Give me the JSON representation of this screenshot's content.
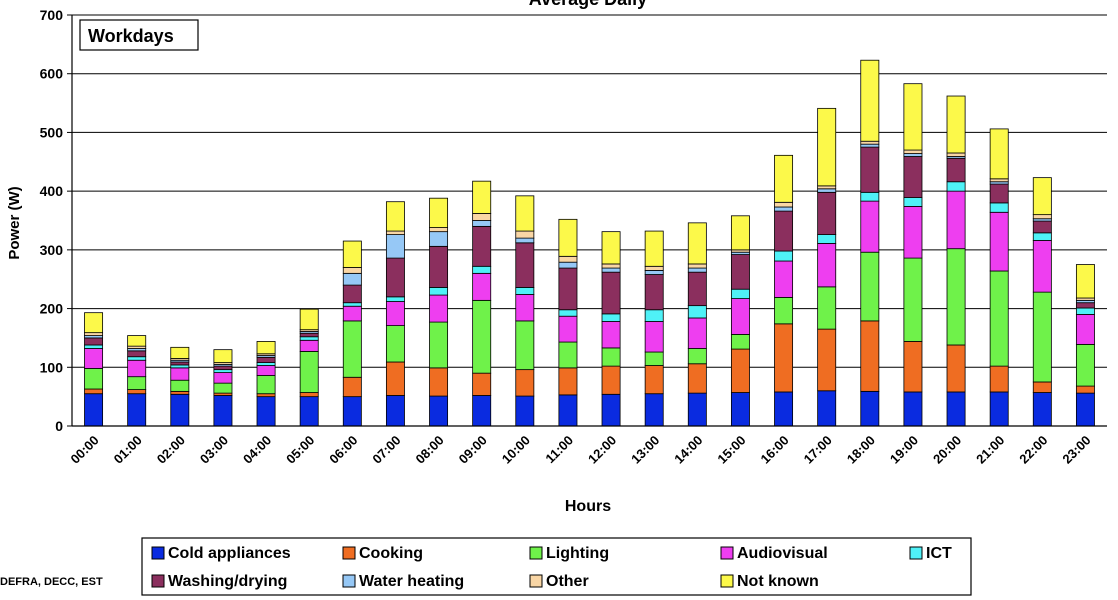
{
  "chart_data": {
    "type": "bar",
    "stacked": true,
    "title": "Average Daily",
    "inset_label": "Workdays",
    "xlabel": "Hours",
    "ylabel": "Power (W)",
    "ylim": [
      0,
      700
    ],
    "yticks": [
      0,
      100,
      200,
      300,
      400,
      500,
      600,
      700
    ],
    "grid": true,
    "legend_position": "bottom",
    "categories": [
      "00:00",
      "01:00",
      "02:00",
      "03:00",
      "04:00",
      "05:00",
      "06:00",
      "07:00",
      "08:00",
      "09:00",
      "10:00",
      "11:00",
      "12:00",
      "13:00",
      "14:00",
      "15:00",
      "16:00",
      "17:00",
      "18:00",
      "19:00",
      "20:00",
      "21:00",
      "22:00",
      "23:00"
    ],
    "series": [
      {
        "name": "Cold appliances",
        "color": "#0a2be0",
        "values": [
          55,
          55,
          54,
          52,
          50,
          50,
          50,
          52,
          51,
          52,
          51,
          53,
          54,
          55,
          56,
          57,
          58,
          60,
          59,
          58,
          58,
          58,
          57,
          56
        ]
      },
      {
        "name": "Cooking",
        "color": "#ef6d22",
        "values": [
          8,
          7,
          5,
          4,
          5,
          7,
          33,
          57,
          48,
          38,
          45,
          46,
          48,
          48,
          50,
          74,
          116,
          105,
          120,
          86,
          80,
          44,
          18,
          12
        ]
      },
      {
        "name": "Lighting",
        "color": "#6ff24a",
        "values": [
          35,
          22,
          19,
          17,
          31,
          70,
          96,
          62,
          78,
          124,
          83,
          44,
          31,
          23,
          26,
          25,
          45,
          72,
          117,
          142,
          164,
          162,
          153,
          71
        ]
      },
      {
        "name": "Audiovisual",
        "color": "#ee3ef0",
        "values": [
          34,
          28,
          21,
          18,
          17,
          19,
          25,
          41,
          46,
          46,
          45,
          44,
          45,
          52,
          52,
          61,
          62,
          74,
          87,
          88,
          98,
          100,
          88,
          51
        ]
      },
      {
        "name": "ICT",
        "color": "#4ff1f7",
        "values": [
          6,
          6,
          5,
          5,
          5,
          6,
          6,
          8,
          13,
          12,
          12,
          11,
          13,
          20,
          21,
          16,
          17,
          15,
          15,
          15,
          16,
          16,
          13,
          11
        ]
      },
      {
        "name": "Washing/drying",
        "color": "#8b2f5e",
        "values": [
          12,
          10,
          5,
          6,
          9,
          6,
          30,
          66,
          70,
          68,
          76,
          71,
          71,
          60,
          57,
          59,
          68,
          72,
          77,
          70,
          40,
          32,
          20,
          9
        ]
      },
      {
        "name": "Water heating",
        "color": "#96c8f6",
        "values": [
          4,
          4,
          3,
          3,
          3,
          3,
          20,
          40,
          25,
          10,
          8,
          10,
          7,
          7,
          7,
          4,
          7,
          6,
          5,
          5,
          3,
          4,
          4,
          4
        ]
      },
      {
        "name": "Other",
        "color": "#f9d6a5",
        "values": [
          5,
          4,
          3,
          3,
          3,
          3,
          10,
          6,
          7,
          12,
          12,
          10,
          7,
          7,
          7,
          4,
          8,
          5,
          5,
          6,
          6,
          5,
          7,
          4
        ]
      },
      {
        "name": "Not known",
        "color": "#fcf94a",
        "values": [
          34,
          18,
          19,
          22,
          21,
          35,
          45,
          50,
          50,
          55,
          60,
          63,
          55,
          60,
          70,
          58,
          80,
          132,
          138,
          113,
          97,
          85,
          63,
          57
        ]
      }
    ]
  },
  "source_note": "DEFRA, DECC, EST"
}
